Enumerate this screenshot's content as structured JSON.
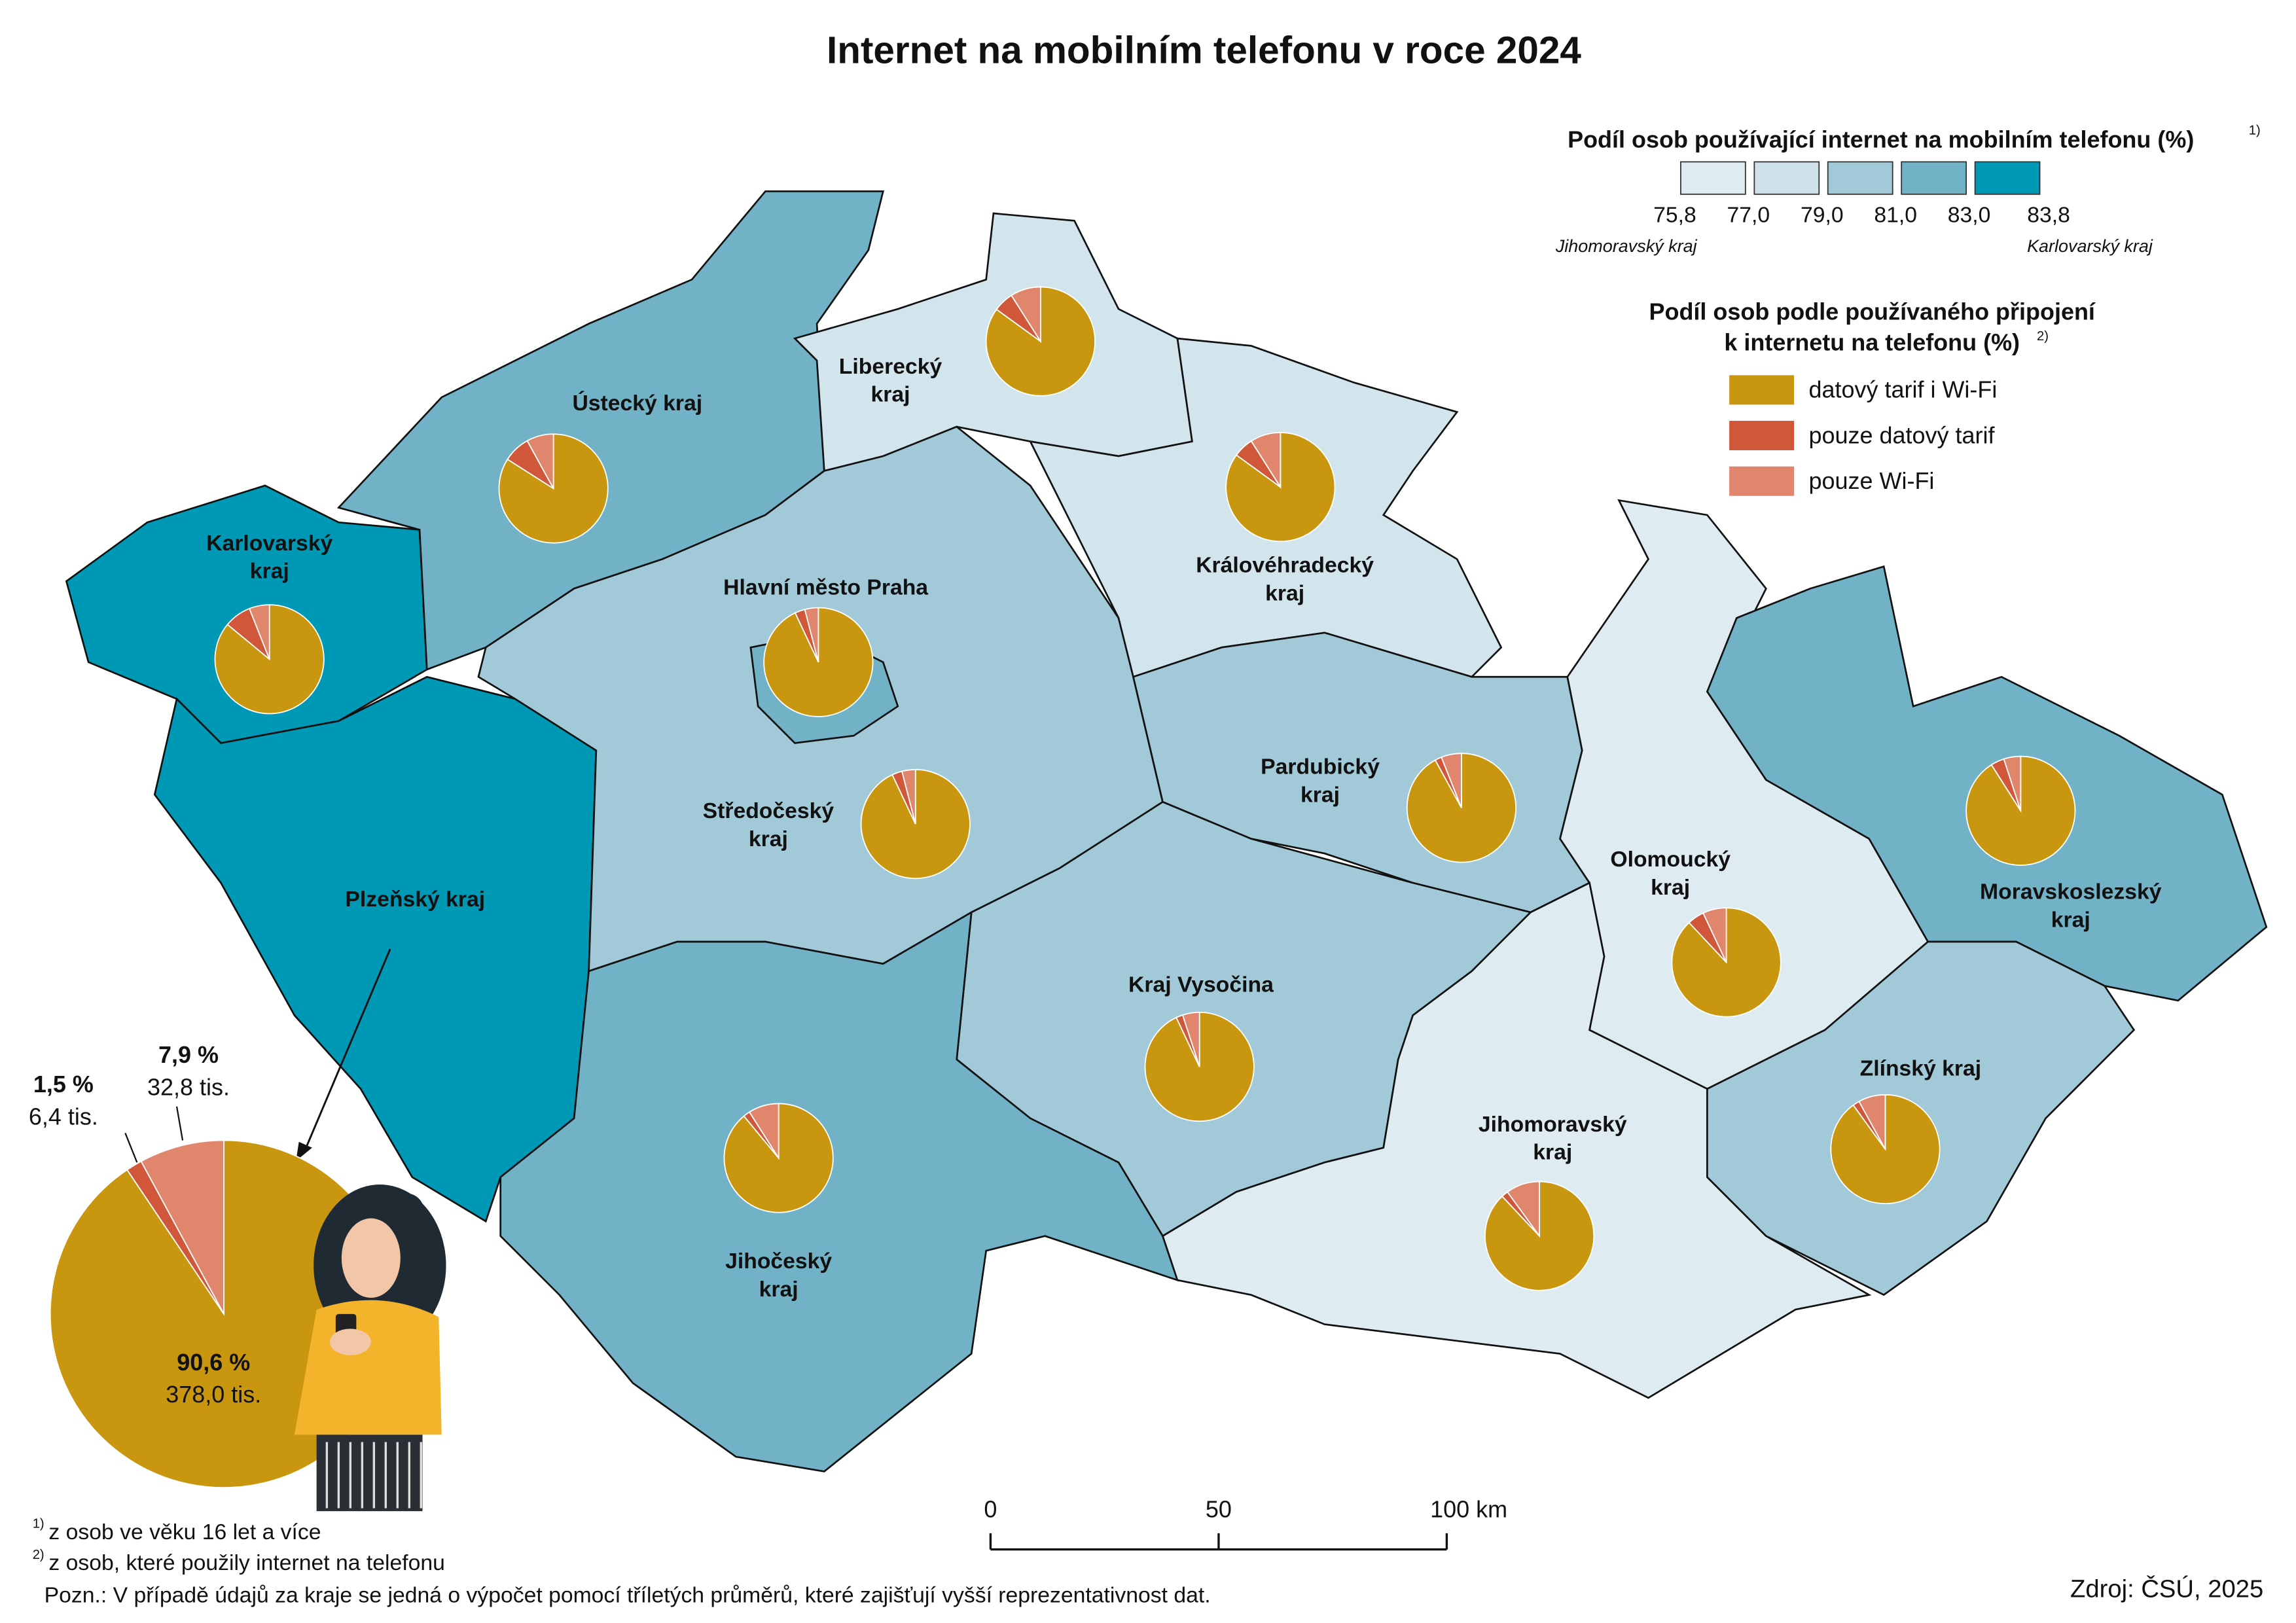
{
  "title": "Internet na mobilním telefonu v roce 2024",
  "legend_share": {
    "title": "Podíl osob používající internet na mobilním telefonu (%)",
    "note_mark": "1)",
    "ticks": [
      {
        "value": 75.8,
        "label": "75,8"
      },
      {
        "value": 77.0,
        "label": "77,0"
      },
      {
        "value": 79.0,
        "label": "79,0"
      },
      {
        "value": 81.0,
        "label": "81,0"
      },
      {
        "value": 83.0,
        "label": "83,0"
      },
      {
        "value": 83.8,
        "label": "83,8"
      }
    ],
    "colors": [
      "#deebf1",
      "#cfe2ea",
      "#a2c9d8",
      "#72b2c7",
      "#0099b5"
    ],
    "min_label": "Jihomoravský kraj",
    "max_label": "Karlovarský kraj"
  },
  "legend_connection": {
    "title_lines": [
      "Podíl osob podle používaného připojení",
      "k internetu na telefonu (%)"
    ],
    "note_mark": "2)",
    "items": [
      {
        "name": "datový tarif i Wi-Fi",
        "color": "#c9960f"
      },
      {
        "name": "pouze datový tarif",
        "color": "#d0573a"
      },
      {
        "name": "pouze Wi-Fi",
        "color": "#e0866d"
      }
    ]
  },
  "regions": [
    {
      "label_lines": [
        "Karlovarský",
        "kraj"
      ],
      "color": "#0099b5",
      "shares": [
        86,
        8,
        6
      ]
    },
    {
      "label_lines": [
        "Plzeňský kraj"
      ],
      "color": "#0099b5"
    },
    {
      "label_lines": [
        "Ústecký kraj"
      ],
      "color": "#72b2c7",
      "shares": [
        84,
        8,
        8
      ]
    },
    {
      "label_lines": [
        "Liberecký",
        "kraj"
      ],
      "color": "#d2e4ec",
      "shares": [
        85,
        6,
        9
      ]
    },
    {
      "label_lines": [
        "Středočeský",
        "kraj"
      ],
      "color": "#a2c9d8",
      "shares": [
        93,
        3,
        4
      ]
    },
    {
      "label_lines": [
        "Hlavní město Praha"
      ],
      "color": "#72b2c7",
      "shares": [
        93,
        3,
        4
      ]
    },
    {
      "label_lines": [
        "Královéhradecký",
        "kraj"
      ],
      "color": "#d2e4ec",
      "shares": [
        85,
        6,
        9
      ]
    },
    {
      "label_lines": [
        "Pardubický",
        "kraj"
      ],
      "color": "#a2c9d8",
      "shares": [
        92,
        2,
        6
      ]
    },
    {
      "label_lines": [
        "Olomoucký",
        "kraj"
      ],
      "color": "#deebf1",
      "shares": [
        88,
        5,
        7
      ]
    },
    {
      "label_lines": [
        "Moravskoslezský",
        "kraj"
      ],
      "color": "#72b2c7",
      "shares": [
        91,
        4,
        5
      ]
    },
    {
      "label_lines": [
        "Kraj Vysočina"
      ],
      "color": "#a2c9d8",
      "shares": [
        93,
        2,
        5
      ]
    },
    {
      "label_lines": [
        "Jihočeský",
        "kraj"
      ],
      "color": "#72b2c7",
      "shares": [
        89,
        2,
        9
      ]
    },
    {
      "label_lines": [
        "Jihomoravský",
        "kraj"
      ],
      "color": "#deebf1",
      "shares": [
        88,
        2,
        10
      ]
    },
    {
      "label_lines": [
        "Zlínský kraj"
      ],
      "color": "#a2c9d8",
      "shares": [
        90,
        2,
        8
      ]
    }
  ],
  "highlight": {
    "values": [
      90.6,
      1.5,
      7.9
    ],
    "value_labels": [
      "90,6 %",
      "1,5 %",
      "7,9 %"
    ],
    "count_labels": [
      "378,0 tis.",
      "6,4 tis.",
      "32,8 tis."
    ]
  },
  "scale_bar": {
    "ticks": [
      0,
      50,
      {
        "value": 100,
        "label": "100 km"
      }
    ]
  },
  "footnotes": [
    {
      "mark": "1)",
      "text": "z osob ve věku 16 let a více"
    },
    {
      "mark": "2)",
      "text": "z osob, které použily internet na telefonu"
    }
  ],
  "note": "Pozn.: V případě údajů za kraje se jedná o výpočet pomocí tříletých průměrů, které zajišťují vyšší reprezentativnost dat.",
  "source": "Zdroj: ČSÚ, 2025"
}
